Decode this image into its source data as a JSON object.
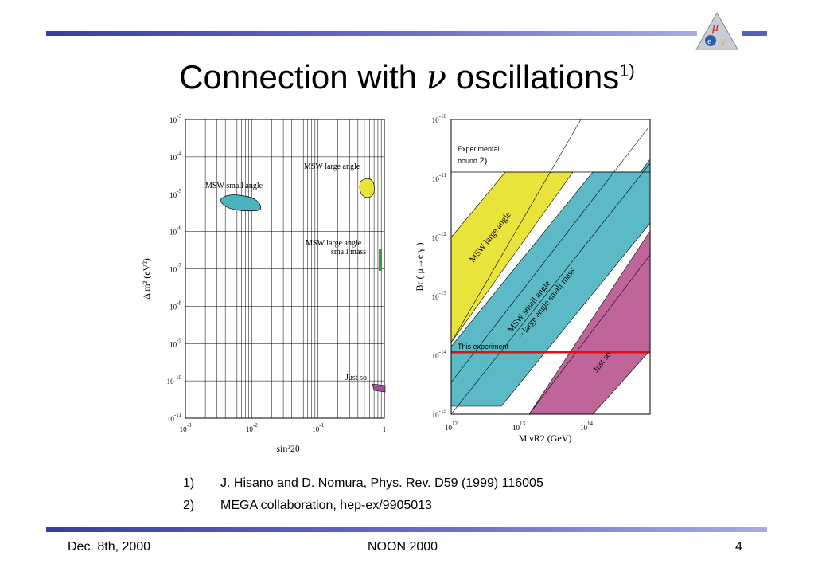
{
  "slide": {
    "title": "Connection with ",
    "title_nu": "ν",
    "title_tail": " oscillations",
    "title_sup": "1)"
  },
  "left_plot": {
    "ylabel": "Δ m² (eV²)",
    "xlabel": "sin²2θ",
    "y_ticks": [
      "10-3",
      "10-4",
      "10-5",
      "10-6",
      "10-7",
      "10-8",
      "10-9",
      "10-10",
      "10-11"
    ],
    "x_ticks": [
      "10-3",
      "10-2",
      "10-1",
      "1"
    ],
    "labels": {
      "msw_large": "MSW large angle",
      "msw_small": "MSW small angle",
      "msw_large_small_mass_1": "MSW large angle",
      "msw_large_small_mass_2": "small mass",
      "just_so": "Just so"
    },
    "colors": {
      "small": "#4bb3bf",
      "large": "#e7e43a",
      "smallmass": "#3a9a4a",
      "justso": "#a0509a"
    }
  },
  "right_plot": {
    "ylabel": "Br ( μ→e γ )",
    "xlabel": "M νR2 (GeV)",
    "y_ticks": [
      "10-10",
      "10-11",
      "10-12",
      "10-13",
      "10-14",
      "10-15"
    ],
    "x_ticks": [
      "10 12",
      "10 13",
      "10 14"
    ],
    "exp_bound_1": "Experimental",
    "exp_bound_2": "bound ",
    "exp_bound_ref": "2)",
    "this_experiment": "This experiment",
    "band_large": "MSW large angle",
    "band_small_1": "MSW  small angle",
    "band_small_2": "~ large angle small mass",
    "band_justso": "Just so",
    "colors": {
      "yellow": "#e8e43b",
      "teal": "#5bbac5",
      "pink": "#c0659a",
      "red": "#e01010"
    }
  },
  "references": [
    {
      "num": "1)",
      "text": "J. Hisano and D. Nomura, Phys. Rev. D59 (1999) 116005"
    },
    {
      "num": "2)",
      "text": "MEGA collaboration, hep-ex/9905013"
    }
  ],
  "footer": {
    "date": "Dec. 8th, 2000",
    "event": "NOON 2000",
    "page": "4"
  }
}
